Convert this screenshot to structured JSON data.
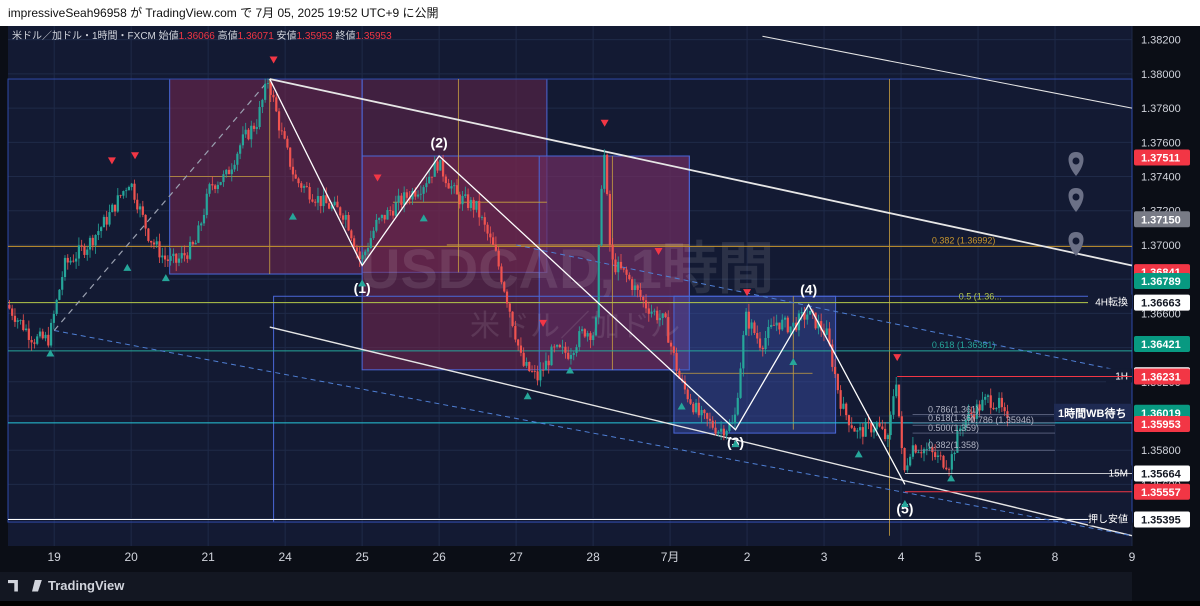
{
  "header": {
    "text": "impressiveSeah96958 が TradingView.com で 7月 05, 2025 19:52 UTC+9 に公開"
  },
  "legend": {
    "symbol": "米ドル／加ドル・1時間・FXCM",
    "open_label": "始値",
    "open": "1.36066",
    "high_label": "高値",
    "high": "1.36071",
    "low_label": "安値",
    "low": "1.35953",
    "close_label": "終値",
    "close": "1.35953"
  },
  "watermark": {
    "line1": "USDCAD, 1時間",
    "line2": "米ドル／加ドル"
  },
  "footer": {
    "brand": "TradingView"
  },
  "colors": {
    "bg": "#131a33",
    "up": "#26a69a",
    "down": "#ef5350",
    "grid": "#1f2a48",
    "text": "#d1d4dc"
  },
  "chart_data": {
    "type": "candlestick",
    "symbol": "USDCAD",
    "timeframe": "1時間",
    "ylim": [
      1.3524,
      1.3828
    ],
    "y_ticks": [
      "1.38200",
      "1.38000",
      "1.37800",
      "1.37600",
      "1.37400",
      "1.37200",
      "1.37000",
      "1.36800",
      "1.36600",
      "1.36400",
      "1.36200",
      "1.36000",
      "1.35800",
      "1.35600",
      "1.35400"
    ],
    "x_ticks": [
      {
        "label": "19",
        "x": 0.6
      },
      {
        "label": "20",
        "x": 1.6
      },
      {
        "label": "21",
        "x": 2.6
      },
      {
        "label": "24",
        "x": 3.6
      },
      {
        "label": "25",
        "x": 4.6
      },
      {
        "label": "26",
        "x": 5.6
      },
      {
        "label": "27",
        "x": 6.6
      },
      {
        "label": "28",
        "x": 7.6
      },
      {
        "label": "7月",
        "x": 8.6
      },
      {
        "label": "2",
        "x": 9.6
      },
      {
        "label": "3",
        "x": 10.6
      },
      {
        "label": "4",
        "x": 11.6
      },
      {
        "label": "5",
        "x": 12.6
      },
      {
        "label": "8",
        "x": 13.6
      },
      {
        "label": "9",
        "x": 14.6
      }
    ],
    "price_path": [
      [
        0.0,
        1.3665
      ],
      [
        0.35,
        1.3645
      ],
      [
        0.55,
        1.3645
      ],
      [
        0.75,
        1.3688
      ],
      [
        1.05,
        1.37
      ],
      [
        1.3,
        1.3715
      ],
      [
        1.6,
        1.3738
      ],
      [
        1.85,
        1.3705
      ],
      [
        2.05,
        1.3692
      ],
      [
        2.2,
        1.369
      ],
      [
        2.45,
        1.37
      ],
      [
        2.65,
        1.3735
      ],
      [
        2.85,
        1.374
      ],
      [
        3.05,
        1.376
      ],
      [
        3.25,
        1.3772
      ],
      [
        3.4,
        1.3797
      ],
      [
        3.55,
        1.3768
      ],
      [
        3.75,
        1.3738
      ],
      [
        4.1,
        1.3725
      ],
      [
        4.4,
        1.3718
      ],
      [
        4.6,
        1.369
      ],
      [
        4.8,
        1.3712
      ],
      [
        5.1,
        1.3725
      ],
      [
        5.4,
        1.3735
      ],
      [
        5.6,
        1.3748
      ],
      [
        5.85,
        1.3728
      ],
      [
        6.1,
        1.3722
      ],
      [
        6.35,
        1.3695
      ],
      [
        6.55,
        1.366
      ],
      [
        6.7,
        1.363
      ],
      [
        6.9,
        1.3622
      ],
      [
        7.1,
        1.3638
      ],
      [
        7.3,
        1.3637
      ],
      [
        7.5,
        1.365
      ],
      [
        7.65,
        1.3648
      ],
      [
        7.75,
        1.3762
      ],
      [
        7.85,
        1.369
      ],
      [
        8.05,
        1.3682
      ],
      [
        8.3,
        1.3665
      ],
      [
        8.55,
        1.3655
      ],
      [
        8.75,
        1.362
      ],
      [
        9.0,
        1.36
      ],
      [
        9.25,
        1.3592
      ],
      [
        9.45,
        1.3595
      ],
      [
        9.6,
        1.3658
      ],
      [
        9.8,
        1.3642
      ],
      [
        10.0,
        1.3655
      ],
      [
        10.2,
        1.3652
      ],
      [
        10.4,
        1.366
      ],
      [
        10.65,
        1.3648
      ],
      [
        10.85,
        1.3605
      ],
      [
        11.05,
        1.359
      ],
      [
        11.3,
        1.3595
      ],
      [
        11.45,
        1.3585
      ],
      [
        11.55,
        1.3625
      ],
      [
        11.65,
        1.3565
      ],
      [
        11.75,
        1.3583
      ],
      [
        11.95,
        1.358
      ],
      [
        12.1,
        1.3575
      ],
      [
        12.25,
        1.3572
      ],
      [
        12.4,
        1.3595
      ],
      [
        12.55,
        1.3602
      ],
      [
        12.75,
        1.361
      ],
      [
        12.9,
        1.3606
      ],
      [
        13.0,
        1.3595
      ]
    ],
    "current_price": "1.35953",
    "price_labels": [
      {
        "price": 1.37511,
        "label": "1.37511",
        "color": "#f23645"
      },
      {
        "price": 1.3715,
        "label": "1.37150",
        "color": "#787b86"
      },
      {
        "price": 1.36841,
        "label": "1.36841",
        "color": "#f23645"
      },
      {
        "price": 1.36789,
        "label": "1.36789",
        "color": "#089981"
      },
      {
        "price": 1.36663,
        "label": "1.36663",
        "color": "#ffffff"
      },
      {
        "price": 1.36421,
        "label": "1.36421",
        "color": "#089981"
      },
      {
        "price": 1.36238,
        "label": "1.36238",
        "color": "#ffffff"
      },
      {
        "price": 1.36231,
        "label": "1.36231",
        "color": "#f23645"
      },
      {
        "price": 1.36019,
        "label": "1.36019",
        "color": "#089981"
      },
      {
        "price": 1.35953,
        "label": "1.35953",
        "color": "#f23645"
      },
      {
        "price": 1.35664,
        "label": "1.35664",
        "color": "#ffffff"
      },
      {
        "price": 1.35557,
        "label": "1.35557",
        "color": "#f23645"
      },
      {
        "price": 1.35395,
        "label": "1.35395",
        "color": "#ffffff"
      }
    ],
    "horizontal_levels": [
      {
        "price": 1.36992,
        "color": "#c8962e",
        "label": "0.382 (1.36992)",
        "x0": 0,
        "label_x": 12.0
      },
      {
        "price": 1.36663,
        "color": "#b5c94a",
        "label": "0.5 (1.36...",
        "x0": 0,
        "label_x": 12.35
      },
      {
        "price": 1.36381,
        "color": "#26a69a",
        "label": "0.618 (1.36381)",
        "x0": 0,
        "label_x": 12.0
      },
      {
        "price": 1.3596,
        "color": "#26c6da",
        "label": "",
        "x0": 0,
        "label_x": 0
      },
      {
        "price": 1.35395,
        "color": "#ffffff",
        "label": "",
        "x0": 0,
        "label_x": 0
      }
    ],
    "level_tags": [
      {
        "price": 1.36663,
        "label": "4H転換"
      },
      {
        "price": 1.36231,
        "label": "1H"
      },
      {
        "price": 1.35664,
        "label": "15M"
      },
      {
        "price": 1.35395,
        "label": "押し安値"
      },
      {
        "price": 1.36019,
        "label": "1時間WB待ち"
      }
    ],
    "fib_small": [
      {
        "price": 1.3601,
        "label": "0.786(1.361)"
      },
      {
        "price": 1.3596,
        "label": "0.618(1.36)"
      },
      {
        "price": 1.35946,
        "label": "0.786 (1.35946)"
      },
      {
        "price": 1.359,
        "label": "0.500(1.359)"
      },
      {
        "price": 1.358,
        "label": "0.382(1.358)"
      }
    ],
    "wave_labels": [
      {
        "label": "(1)",
        "x": 4.6,
        "price": 1.3672
      },
      {
        "label": "(2)",
        "x": 5.6,
        "price": 1.3757
      },
      {
        "label": "(3)",
        "x": 9.45,
        "price": 1.3582
      },
      {
        "label": "(4)",
        "x": 10.4,
        "price": 1.3671
      },
      {
        "label": "(5)",
        "x": 11.65,
        "price": 1.3543
      }
    ],
    "wave_path": [
      [
        3.4,
        1.3797
      ],
      [
        4.6,
        1.3688
      ],
      [
        5.6,
        1.3752
      ],
      [
        9.45,
        1.3592
      ],
      [
        10.4,
        1.3665
      ],
      [
        11.65,
        1.356
      ]
    ],
    "channel_lines": [
      {
        "from": [
          3.4,
          1.3797
        ],
        "to": [
          14.6,
          1.3688
        ],
        "color": "#e6e6e6",
        "width": 1.8
      },
      {
        "from": [
          3.4,
          1.3652
        ],
        "to": [
          14.6,
          1.353
        ],
        "color": "#e6e6e6",
        "width": 1.4
      },
      {
        "from": [
          0.6,
          1.365
        ],
        "to": [
          14.6,
          1.353
        ],
        "color": "#4f7fd4",
        "width": 1,
        "dash": "5,4"
      },
      {
        "from": [
          6.6,
          1.37
        ],
        "to": [
          14.6,
          1.3625
        ],
        "color": "#4f7fd4",
        "width": 1,
        "dash": "5,4"
      },
      {
        "from": [
          9.8,
          1.3822
        ],
        "to": [
          14.6,
          1.378
        ],
        "color": "#e6e6e6",
        "width": 1
      },
      {
        "from": [
          0.6,
          1.365
        ],
        "to": [
          3.4,
          1.3797
        ],
        "color": "#9aa0b0",
        "width": 1.2,
        "dash": "6,5"
      }
    ],
    "markers_up": [
      [
        0.55,
        1.3643
      ],
      [
        1.55,
        1.3693
      ],
      [
        2.05,
        1.3687
      ],
      [
        3.7,
        1.3723
      ],
      [
        4.6,
        1.3684
      ],
      [
        5.4,
        1.3722
      ],
      [
        6.75,
        1.3618
      ],
      [
        7.3,
        1.3633
      ],
      [
        8.75,
        1.3612
      ],
      [
        9.45,
        1.359
      ],
      [
        10.2,
        1.3638
      ],
      [
        11.05,
        1.3584
      ],
      [
        11.65,
        1.3555
      ],
      [
        12.25,
        1.357
      ]
    ],
    "markers_down": [
      [
        1.35,
        1.3743
      ],
      [
        1.65,
        1.3746
      ],
      [
        3.45,
        1.3802
      ],
      [
        4.8,
        1.3733
      ],
      [
        6.95,
        1.3648
      ],
      [
        7.75,
        1.3765
      ],
      [
        8.45,
        1.369
      ],
      [
        9.6,
        1.3666
      ],
      [
        11.55,
        1.3628
      ]
    ]
  }
}
